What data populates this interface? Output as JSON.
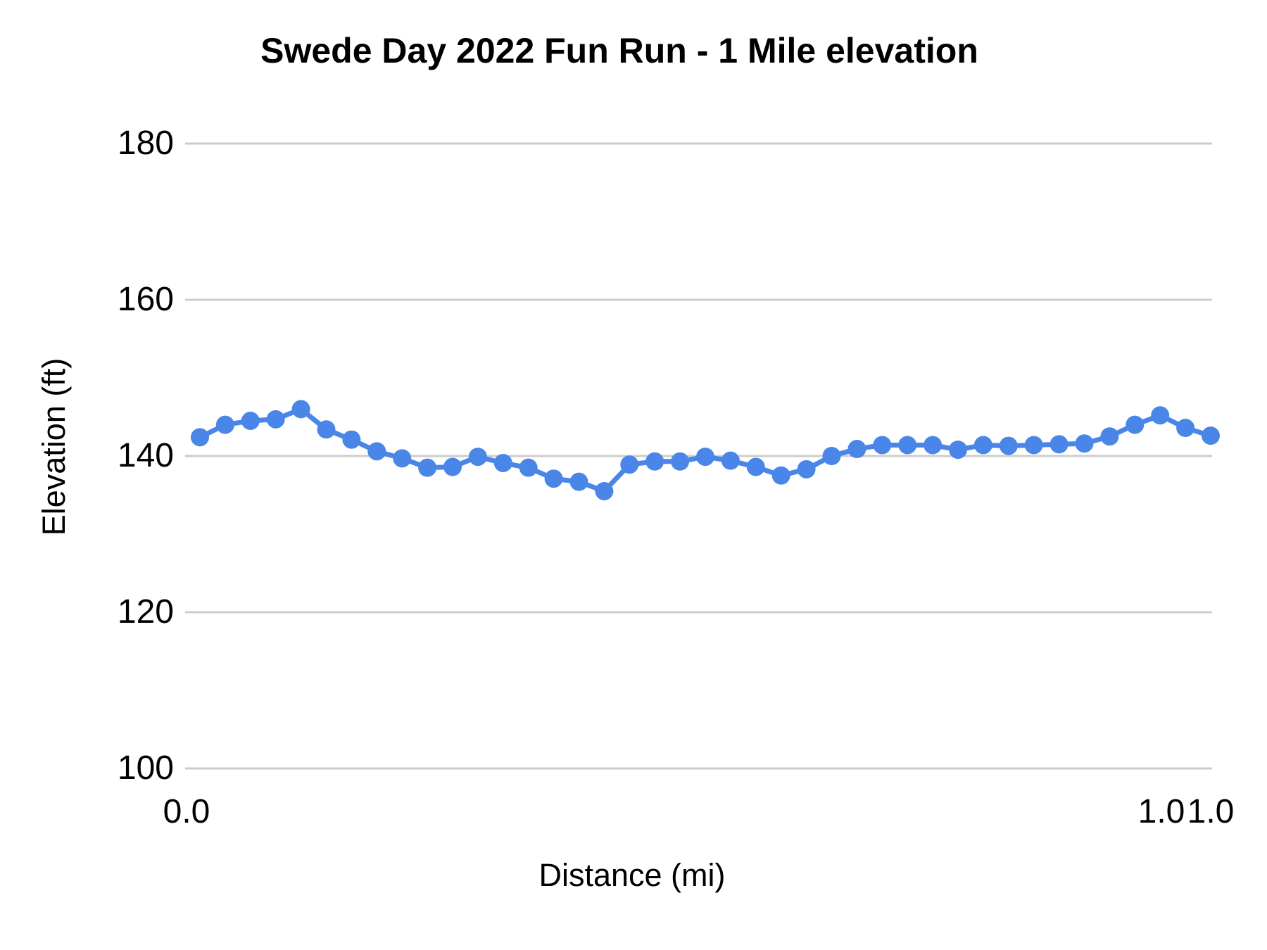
{
  "chart_data": {
    "type": "line",
    "title": "Swede Day 2022 Fun Run - 1 Mile elevation",
    "xlabel": "Distance (mi)",
    "ylabel": "Elevation (ft)",
    "x_tick_labels": [
      "0.0",
      "1.0",
      "1.0"
    ],
    "y_ticks": [
      100,
      120,
      140,
      160,
      180
    ],
    "ylim": [
      100,
      188
    ],
    "num_points": 41,
    "x_range_mi": [
      0.0,
      1.0
    ],
    "grid": true,
    "legend": "none",
    "series": [
      {
        "name": "Elevation",
        "color": "#4a86e8",
        "marker": "circle",
        "values_ft": [
          142.4,
          144.0,
          144.5,
          144.7,
          146.0,
          143.4,
          142.1,
          140.6,
          139.7,
          138.5,
          138.6,
          139.9,
          139.1,
          138.5,
          137.1,
          136.7,
          135.5,
          138.9,
          139.3,
          139.3,
          139.9,
          139.4,
          138.6,
          137.5,
          138.3,
          140.0,
          140.9,
          141.4,
          141.4,
          141.4,
          140.8,
          141.4,
          141.3,
          141.4,
          141.5,
          141.6,
          142.5,
          144.0,
          145.2,
          143.6,
          142.6
        ]
      }
    ]
  },
  "colors": {
    "line": "#4a86e8",
    "gridline": "#cccccc",
    "text": "#000000",
    "background": "#ffffff"
  }
}
